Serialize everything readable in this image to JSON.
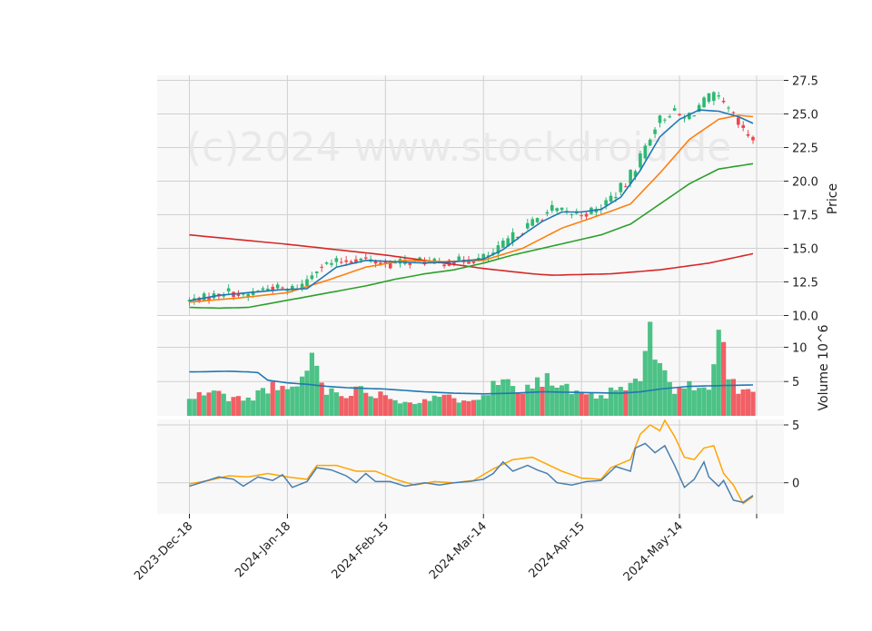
{
  "watermark": "(c)2024 www.stockdroid.de",
  "colors": {
    "up": "#2eb872",
    "down": "#f0454b",
    "sma_short": "#1f77b4",
    "sma_mid": "#ff7f0e",
    "sma_long": "#2ca02c",
    "sma_200": "#d62728",
    "volume_avg": "#1f77b4",
    "macd": "#4a7fb0",
    "signal": "#ffa500",
    "panel_bg": "#f8f8f8",
    "grid": "#d0d0d0"
  },
  "chart_data": {
    "type": "candlestick",
    "x_tick_labels": [
      "2023-Dec-18",
      "2024-Jan-18",
      "2024-Feb-15",
      "2024-Mar-14",
      "2024-Apr-15",
      "2024-May-14"
    ],
    "price_panel": {
      "ylabel": "Price",
      "ylim": [
        10.0,
        27.5
      ],
      "yticks": [
        "10.0",
        "12.5",
        "15.0",
        "17.5",
        "20.0",
        "22.5",
        "25.0",
        "27.5"
      ],
      "close_keypoints": [
        [
          0,
          11.1
        ],
        [
          5,
          11.5
        ],
        [
          8,
          11.8
        ],
        [
          11,
          11.4
        ],
        [
          14,
          11.9
        ],
        [
          17,
          12.1
        ],
        [
          20,
          11.9
        ],
        [
          23,
          12.3
        ],
        [
          26,
          13.6
        ],
        [
          29,
          13.9
        ],
        [
          32,
          14.1
        ],
        [
          35,
          14.2
        ],
        [
          38,
          14.0
        ],
        [
          41,
          13.8
        ],
        [
          44,
          14.0
        ],
        [
          47,
          14.1
        ],
        [
          50,
          13.9
        ],
        [
          53,
          14.0
        ],
        [
          56,
          14.1
        ],
        [
          59,
          14.2
        ],
        [
          62,
          14.6
        ],
        [
          65,
          15.6
        ],
        [
          68,
          16.4
        ],
        [
          71,
          17.2
        ],
        [
          74,
          17.9
        ],
        [
          77,
          17.6
        ],
        [
          80,
          17.6
        ],
        [
          83,
          17.8
        ],
        [
          86,
          18.8
        ],
        [
          89,
          19.8
        ],
        [
          92,
          21.8
        ],
        [
          95,
          24.2
        ],
        [
          98,
          25.2
        ],
        [
          101,
          24.6
        ],
        [
          104,
          25.6
        ],
        [
          107,
          26.3
        ],
        [
          110,
          25.2
        ],
        [
          113,
          23.6
        ],
        [
          115,
          23.2
        ]
      ],
      "sma_short": [
        [
          0,
          11.1
        ],
        [
          6,
          11.5
        ],
        [
          12,
          11.7
        ],
        [
          18,
          11.9
        ],
        [
          24,
          12.0
        ],
        [
          30,
          13.6
        ],
        [
          36,
          14.1
        ],
        [
          42,
          14.0
        ],
        [
          48,
          13.9
        ],
        [
          54,
          14.0
        ],
        [
          60,
          14.2
        ],
        [
          64,
          14.9
        ],
        [
          68,
          16.0
        ],
        [
          72,
          17.0
        ],
        [
          76,
          17.7
        ],
        [
          80,
          17.7
        ],
        [
          84,
          17.9
        ],
        [
          88,
          18.8
        ],
        [
          92,
          20.8
        ],
        [
          96,
          23.3
        ],
        [
          100,
          24.6
        ],
        [
          104,
          25.3
        ],
        [
          108,
          25.2
        ],
        [
          112,
          24.8
        ],
        [
          115,
          24.3
        ]
      ],
      "sma_mid": [
        [
          0,
          11.0
        ],
        [
          10,
          11.3
        ],
        [
          20,
          11.7
        ],
        [
          28,
          12.6
        ],
        [
          36,
          13.6
        ],
        [
          44,
          14.1
        ],
        [
          52,
          14.0
        ],
        [
          60,
          14.1
        ],
        [
          68,
          15.0
        ],
        [
          76,
          16.5
        ],
        [
          84,
          17.5
        ],
        [
          90,
          18.3
        ],
        [
          96,
          20.6
        ],
        [
          102,
          23.1
        ],
        [
          108,
          24.6
        ],
        [
          112,
          24.9
        ],
        [
          115,
          24.8
        ]
      ],
      "sma_long": [
        [
          0,
          10.6
        ],
        [
          6,
          10.55
        ],
        [
          12,
          10.6
        ],
        [
          18,
          11.0
        ],
        [
          24,
          11.4
        ],
        [
          30,
          11.8
        ],
        [
          36,
          12.2
        ],
        [
          42,
          12.7
        ],
        [
          48,
          13.1
        ],
        [
          54,
          13.4
        ],
        [
          60,
          13.9
        ],
        [
          66,
          14.5
        ],
        [
          72,
          15.0
        ],
        [
          78,
          15.5
        ],
        [
          84,
          16.0
        ],
        [
          90,
          16.8
        ],
        [
          96,
          18.3
        ],
        [
          102,
          19.8
        ],
        [
          108,
          20.9
        ],
        [
          115,
          21.3
        ]
      ],
      "sma_200": [
        [
          0,
          16.0
        ],
        [
          20,
          15.3
        ],
        [
          40,
          14.5
        ],
        [
          60,
          13.5
        ],
        [
          70,
          13.1
        ],
        [
          74,
          13.0
        ],
        [
          86,
          13.1
        ],
        [
          96,
          13.4
        ],
        [
          106,
          13.9
        ],
        [
          115,
          14.6
        ]
      ]
    },
    "volume_panel": {
      "ylabel": "Volume  10^6",
      "yticks": [
        "5",
        "10"
      ],
      "ylim": [
        0,
        13.5
      ],
      "volume_keypoints": [
        [
          0,
          2.3
        ],
        [
          4,
          3.6
        ],
        [
          8,
          2.7
        ],
        [
          12,
          2.3
        ],
        [
          16,
          4.3
        ],
        [
          20,
          3.4
        ],
        [
          24,
          6.2
        ],
        [
          25,
          9.0
        ],
        [
          28,
          3.6
        ],
        [
          32,
          3.4
        ],
        [
          36,
          3.8
        ],
        [
          40,
          3.0
        ],
        [
          44,
          2.1
        ],
        [
          48,
          2.3
        ],
        [
          52,
          2.6
        ],
        [
          56,
          2.5
        ],
        [
          60,
          3.2
        ],
        [
          64,
          5.3
        ],
        [
          68,
          4.2
        ],
        [
          72,
          5.5
        ],
        [
          76,
          4.2
        ],
        [
          80,
          2.8
        ],
        [
          84,
          2.8
        ],
        [
          88,
          3.8
        ],
        [
          92,
          5.1
        ],
        [
          94,
          12.6
        ],
        [
          96,
          6.5
        ],
        [
          98,
          4.2
        ],
        [
          102,
          4.3
        ],
        [
          106,
          3.9
        ],
        [
          108,
          11.5
        ],
        [
          110,
          6.7
        ],
        [
          112,
          3.1
        ],
        [
          114,
          4.4
        ],
        [
          115,
          3.0
        ]
      ],
      "volume_avg": [
        [
          0,
          6.4
        ],
        [
          8,
          6.5
        ],
        [
          12,
          6.4
        ],
        [
          14,
          6.3
        ],
        [
          16,
          5.2
        ],
        [
          20,
          4.8
        ],
        [
          24,
          4.6
        ],
        [
          28,
          4.3
        ],
        [
          32,
          4.1
        ],
        [
          40,
          3.9
        ],
        [
          48,
          3.5
        ],
        [
          54,
          3.3
        ],
        [
          60,
          3.2
        ],
        [
          66,
          3.3
        ],
        [
          72,
          3.5
        ],
        [
          80,
          3.4
        ],
        [
          88,
          3.3
        ],
        [
          92,
          3.5
        ],
        [
          96,
          3.9
        ],
        [
          102,
          4.3
        ],
        [
          108,
          4.4
        ],
        [
          115,
          4.5
        ]
      ]
    },
    "macd_panel": {
      "yticks": [
        "0",
        "5"
      ],
      "ylim": [
        -2.3,
        5.0
      ],
      "macd": [
        [
          0,
          -0.3
        ],
        [
          3,
          0.1
        ],
        [
          6,
          0.5
        ],
        [
          9,
          0.3
        ],
        [
          11,
          -0.3
        ],
        [
          14,
          0.5
        ],
        [
          17,
          0.2
        ],
        [
          19,
          0.7
        ],
        [
          21,
          -0.4
        ],
        [
          24,
          0.1
        ],
        [
          26,
          1.3
        ],
        [
          29,
          1.1
        ],
        [
          32,
          0.6
        ],
        [
          34,
          0.0
        ],
        [
          36,
          0.8
        ],
        [
          38,
          0.1
        ],
        [
          41,
          0.1
        ],
        [
          44,
          -0.3
        ],
        [
          48,
          0.0
        ],
        [
          51,
          -0.2
        ],
        [
          54,
          0.0
        ],
        [
          57,
          0.1
        ],
        [
          60,
          0.3
        ],
        [
          62,
          0.8
        ],
        [
          64,
          1.8
        ],
        [
          66,
          1.0
        ],
        [
          69,
          1.5
        ],
        [
          71,
          1.1
        ],
        [
          73,
          0.8
        ],
        [
          75,
          0.0
        ],
        [
          78,
          -0.2
        ],
        [
          81,
          0.1
        ],
        [
          84,
          0.2
        ],
        [
          87,
          1.4
        ],
        [
          90,
          1.0
        ],
        [
          91,
          3.0
        ],
        [
          93,
          3.4
        ],
        [
          95,
          2.6
        ],
        [
          97,
          3.2
        ],
        [
          99,
          1.5
        ],
        [
          101,
          -0.4
        ],
        [
          103,
          0.3
        ],
        [
          105,
          1.8
        ],
        [
          106,
          0.5
        ],
        [
          108,
          -0.3
        ],
        [
          109,
          0.2
        ],
        [
          111,
          -1.5
        ],
        [
          113,
          -1.7
        ],
        [
          115,
          -1.1
        ]
      ],
      "signal": [
        [
          0,
          -0.1
        ],
        [
          4,
          0.2
        ],
        [
          8,
          0.6
        ],
        [
          12,
          0.5
        ],
        [
          16,
          0.8
        ],
        [
          20,
          0.5
        ],
        [
          24,
          0.3
        ],
        [
          26,
          1.5
        ],
        [
          30,
          1.5
        ],
        [
          34,
          1.0
        ],
        [
          38,
          1.0
        ],
        [
          42,
          0.3
        ],
        [
          46,
          -0.2
        ],
        [
          50,
          0.1
        ],
        [
          54,
          0.0
        ],
        [
          58,
          0.2
        ],
        [
          62,
          1.2
        ],
        [
          66,
          2.0
        ],
        [
          70,
          2.2
        ],
        [
          72,
          1.8
        ],
        [
          76,
          1.0
        ],
        [
          80,
          0.4
        ],
        [
          84,
          0.3
        ],
        [
          86,
          1.3
        ],
        [
          90,
          2.0
        ],
        [
          92,
          4.2
        ],
        [
          94,
          5.0
        ],
        [
          96,
          4.5
        ],
        [
          97,
          5.4
        ],
        [
          99,
          4.0
        ],
        [
          101,
          2.2
        ],
        [
          103,
          2.0
        ],
        [
          105,
          3.0
        ],
        [
          107,
          3.2
        ],
        [
          109,
          0.8
        ],
        [
          111,
          -0.2
        ],
        [
          113,
          -1.8
        ],
        [
          115,
          -1.2
        ]
      ]
    }
  }
}
